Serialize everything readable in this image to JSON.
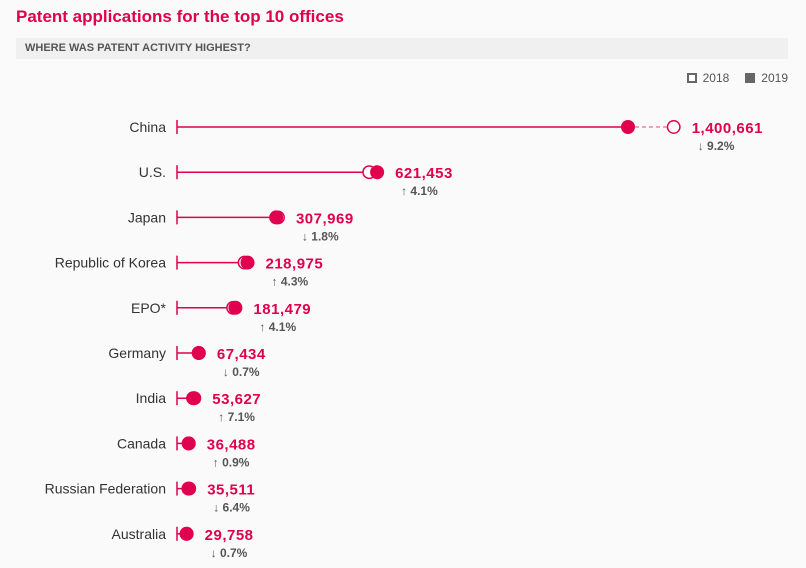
{
  "title": "Patent applications for the top 10 offices",
  "subtitle": "WHERE WAS PATENT ACTIVITY HIGHEST?",
  "colors": {
    "accent": "#e0004d",
    "text": "#333333",
    "muted": "#555555"
  },
  "legend": {
    "open": "2018",
    "filled": "2019"
  },
  "chart_data": {
    "type": "dot-plot",
    "legend_placement": "top-right",
    "grid": false,
    "series": [
      {
        "name": "2018",
        "marker": "open-circle"
      },
      {
        "name": "2019",
        "marker": "filled-circle"
      }
    ],
    "categories": [
      "China",
      "U.S.",
      "Japan",
      "Republic of Korea",
      "EPO*",
      "Germany",
      "India",
      "Canada",
      "Russian Federation",
      "Australia"
    ],
    "rows": [
      {
        "office": "China",
        "value_2019": 1400661,
        "value_2018": 1542578,
        "value_label": "1,400,661",
        "direction": "down",
        "change": "9.2%"
      },
      {
        "office": "U.S.",
        "value_2019": 621453,
        "value_2018": 596977,
        "value_label": "621,453",
        "direction": "up",
        "change": "4.1%"
      },
      {
        "office": "Japan",
        "value_2019": 307969,
        "value_2018": 313614,
        "value_label": "307,969",
        "direction": "down",
        "change": "1.8%"
      },
      {
        "office": "Republic of Korea",
        "value_2019": 218975,
        "value_2018": 209947,
        "value_label": "218,975",
        "direction": "up",
        "change": "4.3%"
      },
      {
        "office": "EPO*",
        "value_2019": 181479,
        "value_2018": 174331,
        "value_label": "181,479",
        "direction": "up",
        "change": "4.1%"
      },
      {
        "office": "Germany",
        "value_2019": 67434,
        "value_2018": 67909,
        "value_label": "67,434",
        "direction": "down",
        "change": "0.7%"
      },
      {
        "office": "India",
        "value_2019": 53627,
        "value_2018": 50072,
        "value_label": "53,627",
        "direction": "up",
        "change": "7.1%"
      },
      {
        "office": "Canada",
        "value_2019": 36488,
        "value_2018": 36163,
        "value_label": "36,488",
        "direction": "up",
        "change": "0.9%"
      },
      {
        "office": "Russian Federation",
        "value_2019": 35511,
        "value_2018": 37939,
        "value_label": "35,511",
        "direction": "down",
        "change": "6.4%"
      },
      {
        "office": "Australia",
        "value_2019": 29758,
        "value_2018": 29968,
        "value_label": "29,758",
        "direction": "down",
        "change": "0.7%"
      }
    ]
  }
}
